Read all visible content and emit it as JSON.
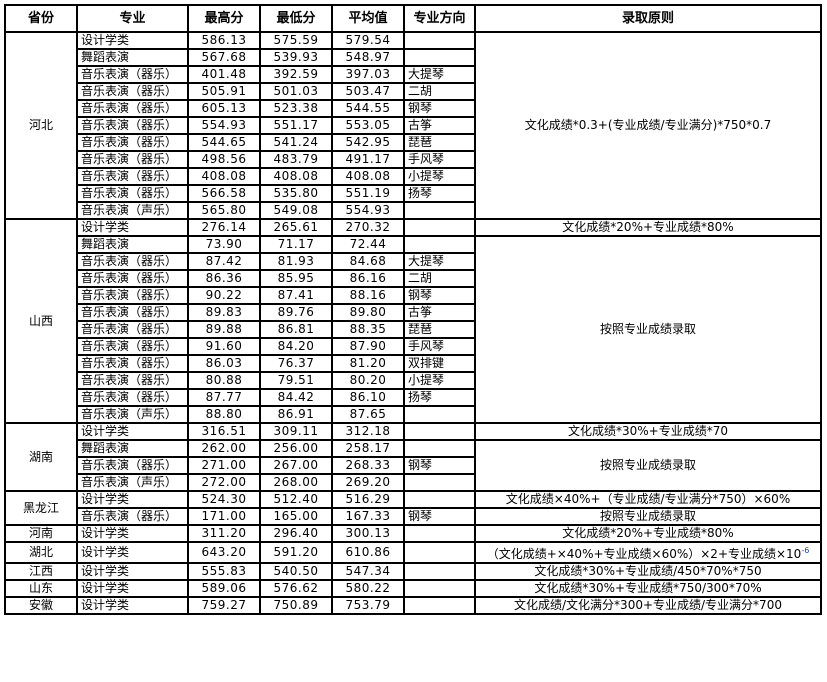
{
  "headers": [
    "省份",
    "专业",
    "最高分",
    "最低分",
    "平均值",
    "专业方向",
    "录取原则"
  ],
  "provinces": [
    {
      "name": "河北",
      "rows": [
        {
          "major": "设计学类",
          "max": "586.13",
          "min": "575.59",
          "avg": "579.54",
          "dir": ""
        },
        {
          "major": "舞蹈表演",
          "max": "567.68",
          "min": "539.93",
          "avg": "548.97",
          "dir": ""
        },
        {
          "major": "音乐表演（器乐）",
          "max": "401.48",
          "min": "392.59",
          "avg": "397.03",
          "dir": "大提琴"
        },
        {
          "major": "音乐表演（器乐）",
          "max": "505.91",
          "min": "501.03",
          "avg": "503.47",
          "dir": "二胡"
        },
        {
          "major": "音乐表演（器乐）",
          "max": "605.13",
          "min": "523.38",
          "avg": "544.55",
          "dir": "钢琴"
        },
        {
          "major": "音乐表演（器乐）",
          "max": "554.93",
          "min": "551.17",
          "avg": "553.05",
          "dir": "古筝"
        },
        {
          "major": "音乐表演（器乐）",
          "max": "544.65",
          "min": "541.24",
          "avg": "542.95",
          "dir": "琵琶"
        },
        {
          "major": "音乐表演（器乐）",
          "max": "498.56",
          "min": "483.79",
          "avg": "491.17",
          "dir": "手风琴"
        },
        {
          "major": "音乐表演（器乐）",
          "max": "408.08",
          "min": "408.08",
          "avg": "408.08",
          "dir": "小提琴"
        },
        {
          "major": "音乐表演（器乐）",
          "max": "566.58",
          "min": "535.80",
          "avg": "551.19",
          "dir": "扬琴"
        },
        {
          "major": "音乐表演（声乐）",
          "max": "565.80",
          "min": "549.08",
          "avg": "554.93",
          "dir": ""
        }
      ],
      "rules": [
        {
          "text": "文化成绩*0.3+(专业成绩/专业满分)*750*0.7",
          "rows": 11
        }
      ]
    },
    {
      "name": "山西",
      "rows": [
        {
          "major": "设计学类",
          "max": "276.14",
          "min": "265.61",
          "avg": "270.32",
          "dir": ""
        },
        {
          "major": "舞蹈表演",
          "max": "73.90",
          "min": "71.17",
          "avg": "72.44",
          "dir": ""
        },
        {
          "major": "音乐表演（器乐）",
          "max": "87.42",
          "min": "81.93",
          "avg": "84.68",
          "dir": "大提琴"
        },
        {
          "major": "音乐表演（器乐）",
          "max": "86.36",
          "min": "85.95",
          "avg": "86.16",
          "dir": "二胡"
        },
        {
          "major": "音乐表演（器乐）",
          "max": "90.22",
          "min": "87.41",
          "avg": "88.16",
          "dir": "钢琴"
        },
        {
          "major": "音乐表演（器乐）",
          "max": "89.83",
          "min": "89.76",
          "avg": "89.80",
          "dir": "古筝"
        },
        {
          "major": "音乐表演（器乐）",
          "max": "89.88",
          "min": "86.81",
          "avg": "88.35",
          "dir": "琵琶"
        },
        {
          "major": "音乐表演（器乐）",
          "max": "91.60",
          "min": "84.20",
          "avg": "87.90",
          "dir": "手风琴"
        },
        {
          "major": "音乐表演（器乐）",
          "max": "86.03",
          "min": "76.37",
          "avg": "81.20",
          "dir": "双排键"
        },
        {
          "major": "音乐表演（器乐）",
          "max": "80.88",
          "min": "79.51",
          "avg": "80.20",
          "dir": "小提琴"
        },
        {
          "major": "音乐表演（器乐）",
          "max": "87.77",
          "min": "84.42",
          "avg": "86.10",
          "dir": "扬琴"
        },
        {
          "major": "音乐表演（声乐）",
          "max": "88.80",
          "min": "86.91",
          "avg": "87.65",
          "dir": ""
        }
      ],
      "rules": [
        {
          "text": "文化成绩*20%+专业成绩*80%",
          "rows": 1
        },
        {
          "text": "按照专业成绩录取",
          "rows": 11
        }
      ]
    },
    {
      "name": "湖南",
      "rows": [
        {
          "major": "设计学类",
          "max": "316.51",
          "min": "309.11",
          "avg": "312.18",
          "dir": ""
        },
        {
          "major": "舞蹈表演",
          "max": "262.00",
          "min": "256.00",
          "avg": "258.17",
          "dir": ""
        },
        {
          "major": "音乐表演（器乐）",
          "max": "271.00",
          "min": "267.00",
          "avg": "268.33",
          "dir": "钢琴"
        },
        {
          "major": "音乐表演（声乐）",
          "max": "272.00",
          "min": "268.00",
          "avg": "269.20",
          "dir": ""
        }
      ],
      "rules": [
        {
          "text": "文化成绩*30%+专业成绩*70",
          "rows": 1
        },
        {
          "text": "按照专业成绩录取",
          "rows": 3
        }
      ]
    },
    {
      "name": "黑龙江",
      "rows": [
        {
          "major": "设计学类",
          "max": "524.30",
          "min": "512.40",
          "avg": "516.29",
          "dir": ""
        },
        {
          "major": "音乐表演（器乐）",
          "max": "171.00",
          "min": "165.00",
          "avg": "167.33",
          "dir": "钢琴"
        }
      ],
      "rules": [
        {
          "text": "文化成绩×40%+（专业成绩/专业满分*750）×60%",
          "rows": 1
        },
        {
          "text": "按照专业成绩录取",
          "rows": 1
        }
      ]
    },
    {
      "name": "河南",
      "rows": [
        {
          "major": "设计学类",
          "max": "311.20",
          "min": "296.40",
          "avg": "300.13",
          "dir": ""
        }
      ],
      "rules": [
        {
          "text": "文化成绩*20%+专业成绩*80%",
          "rows": 1
        }
      ]
    },
    {
      "name": "湖北",
      "rows": [
        {
          "major": "设计学类",
          "max": "643.20",
          "min": "591.20",
          "avg": "610.86",
          "dir": ""
        }
      ],
      "rules": [
        {
          "text": "（文化成绩+×40%+专业成绩×60%）×2+专业成绩×10",
          "sup": "-6",
          "rows": 1
        }
      ]
    },
    {
      "name": "江西",
      "rows": [
        {
          "major": "设计学类",
          "max": "555.83",
          "min": "540.50",
          "avg": "547.34",
          "dir": ""
        }
      ],
      "rules": [
        {
          "text": "文化成绩*30%+专业成绩/450*70%*750",
          "rows": 1
        }
      ]
    },
    {
      "name": "山东",
      "rows": [
        {
          "major": "设计学类",
          "max": "589.06",
          "min": "576.62",
          "avg": "580.22",
          "dir": ""
        }
      ],
      "rules": [
        {
          "text": "文化成绩*30%+专业成绩*750/300*70%",
          "rows": 1
        }
      ]
    },
    {
      "name": "安徽",
      "rows": [
        {
          "major": "设计学类",
          "max": "759.27",
          "min": "750.89",
          "avg": "753.79",
          "dir": ""
        }
      ],
      "rules": [
        {
          "text": "文化成绩/文化满分*300+专业成绩/专业满分*700",
          "rows": 1
        }
      ]
    }
  ]
}
